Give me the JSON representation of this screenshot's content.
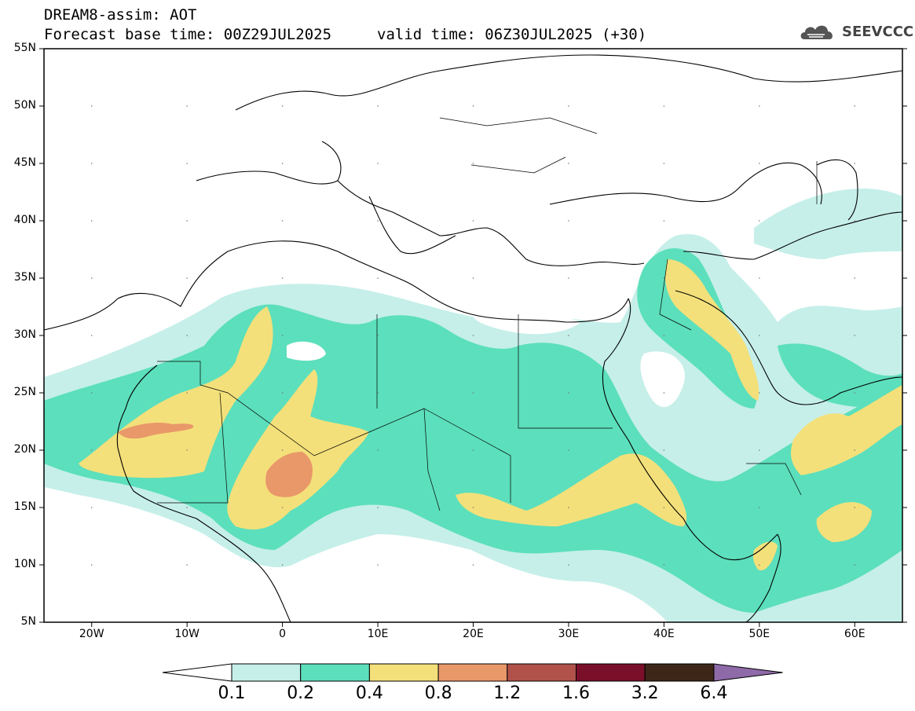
{
  "header": {
    "title_line1": "DREAM8-assim: AOT",
    "title_line2": "Forecast base time: 00Z29JUL2025",
    "valid_time": "valid time: 06Z30JUL2025 (+30)",
    "logo_text": "SEEVCCC"
  },
  "map": {
    "lat_labels": [
      "55N",
      "50N",
      "45N",
      "40N",
      "35N",
      "30N",
      "25N",
      "20N",
      "15N",
      "10N",
      "5N"
    ],
    "lon_labels": [
      "20W",
      "10W",
      "0",
      "10E",
      "20E",
      "30E",
      "40E",
      "50E",
      "60E"
    ],
    "lat_range": [
      5,
      55
    ],
    "lon_range": [
      -25,
      65
    ]
  },
  "colorbar": {
    "levels": [
      "0.1",
      "0.2",
      "0.4",
      "0.8",
      "1.2",
      "1.6",
      "3.2",
      "6.4"
    ],
    "colors": [
      "#c6efe9",
      "#5cdfbc",
      "#f4e07a",
      "#e9986a",
      "#b0524a",
      "#7a0f2a",
      "#3d2618",
      "#8e6aa8"
    ],
    "under_color": "#ffffff"
  },
  "colors": {
    "c01": "#c6efe9",
    "c02": "#5cdfbc",
    "c04": "#f4e07a",
    "c08": "#e9986a",
    "c12": "#b0524a"
  }
}
